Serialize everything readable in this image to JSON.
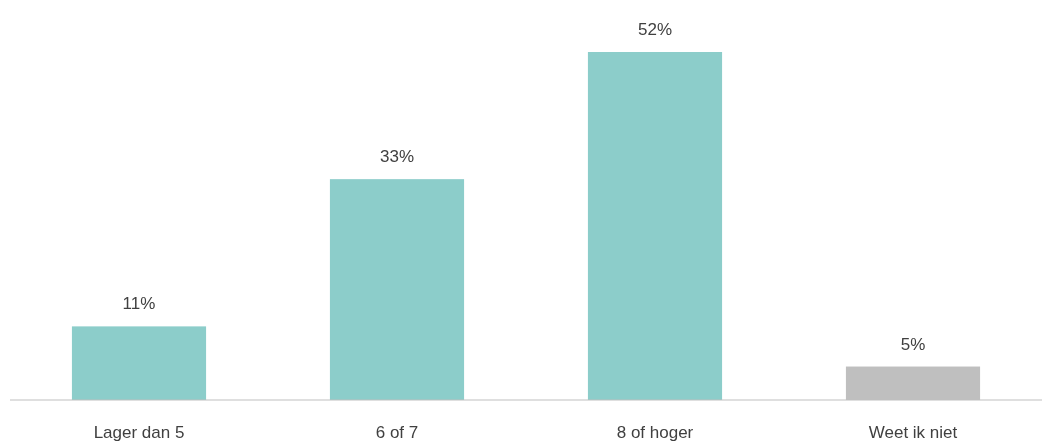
{
  "chart_data": {
    "type": "bar",
    "categories": [
      "Lager dan 5",
      "6 of 7",
      "8 of hoger",
      "Weet ik niet"
    ],
    "values": [
      11,
      33,
      52,
      5
    ],
    "colors": [
      "#8ccdca",
      "#8ccdca",
      "#8ccdca",
      "#bfbfbf"
    ],
    "value_labels": [
      "11%",
      "33%",
      "52%",
      "5%"
    ]
  }
}
